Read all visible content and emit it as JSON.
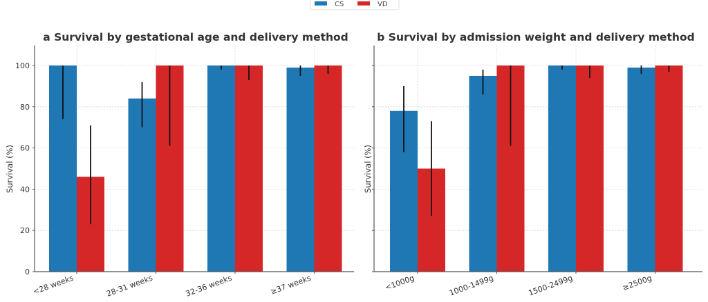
{
  "chart_data": [
    {
      "type": "bar",
      "title": "a Survival by gestational age and delivery method",
      "xlabel": "",
      "ylabel": "Survival (%)",
      "ylim": [
        0,
        110
      ],
      "yticks": [
        0,
        20,
        40,
        60,
        80,
        100
      ],
      "grid": true,
      "categories": [
        "<28 weeks",
        "28-31 weeks",
        "32-36 weeks",
        "≥37 weeks"
      ],
      "series": [
        {
          "name": "CS",
          "color": "#1f77b4",
          "values": [
            100,
            84,
            100,
            99
          ],
          "err_low": [
            74,
            70,
            98,
            95
          ],
          "err_high": [
            100,
            92,
            100,
            100
          ]
        },
        {
          "name": "VD",
          "color": "#d62728",
          "values": [
            46,
            100,
            100,
            100
          ],
          "err_low": [
            23,
            61,
            93,
            96
          ],
          "err_high": [
            71,
            100,
            100,
            100
          ]
        }
      ]
    },
    {
      "type": "bar",
      "title": "b Survival by admission weight and delivery method",
      "xlabel": "",
      "ylabel": "Survival (%)",
      "ylim": [
        0,
        110
      ],
      "yticks": [
        0,
        20,
        40,
        60,
        80,
        100
      ],
      "show_ytick_labels": false,
      "grid": true,
      "categories": [
        "<1000g",
        "1000-1499g",
        "1500-2499g",
        "≥2500g"
      ],
      "series": [
        {
          "name": "CS",
          "color": "#1f77b4",
          "values": [
            78,
            95,
            100,
            99
          ],
          "err_low": [
            58,
            86,
            98,
            96
          ],
          "err_high": [
            90,
            98,
            100,
            100
          ]
        },
        {
          "name": "VD",
          "color": "#d62728",
          "values": [
            50,
            100,
            100,
            100
          ],
          "err_low": [
            27,
            61,
            94,
            97
          ],
          "err_high": [
            73,
            100,
            100,
            100
          ]
        }
      ]
    }
  ],
  "legend": {
    "placement": "top-center",
    "entries": [
      {
        "label": "CS",
        "color": "#1f77b4"
      },
      {
        "label": "VD",
        "color": "#d62728"
      }
    ]
  }
}
